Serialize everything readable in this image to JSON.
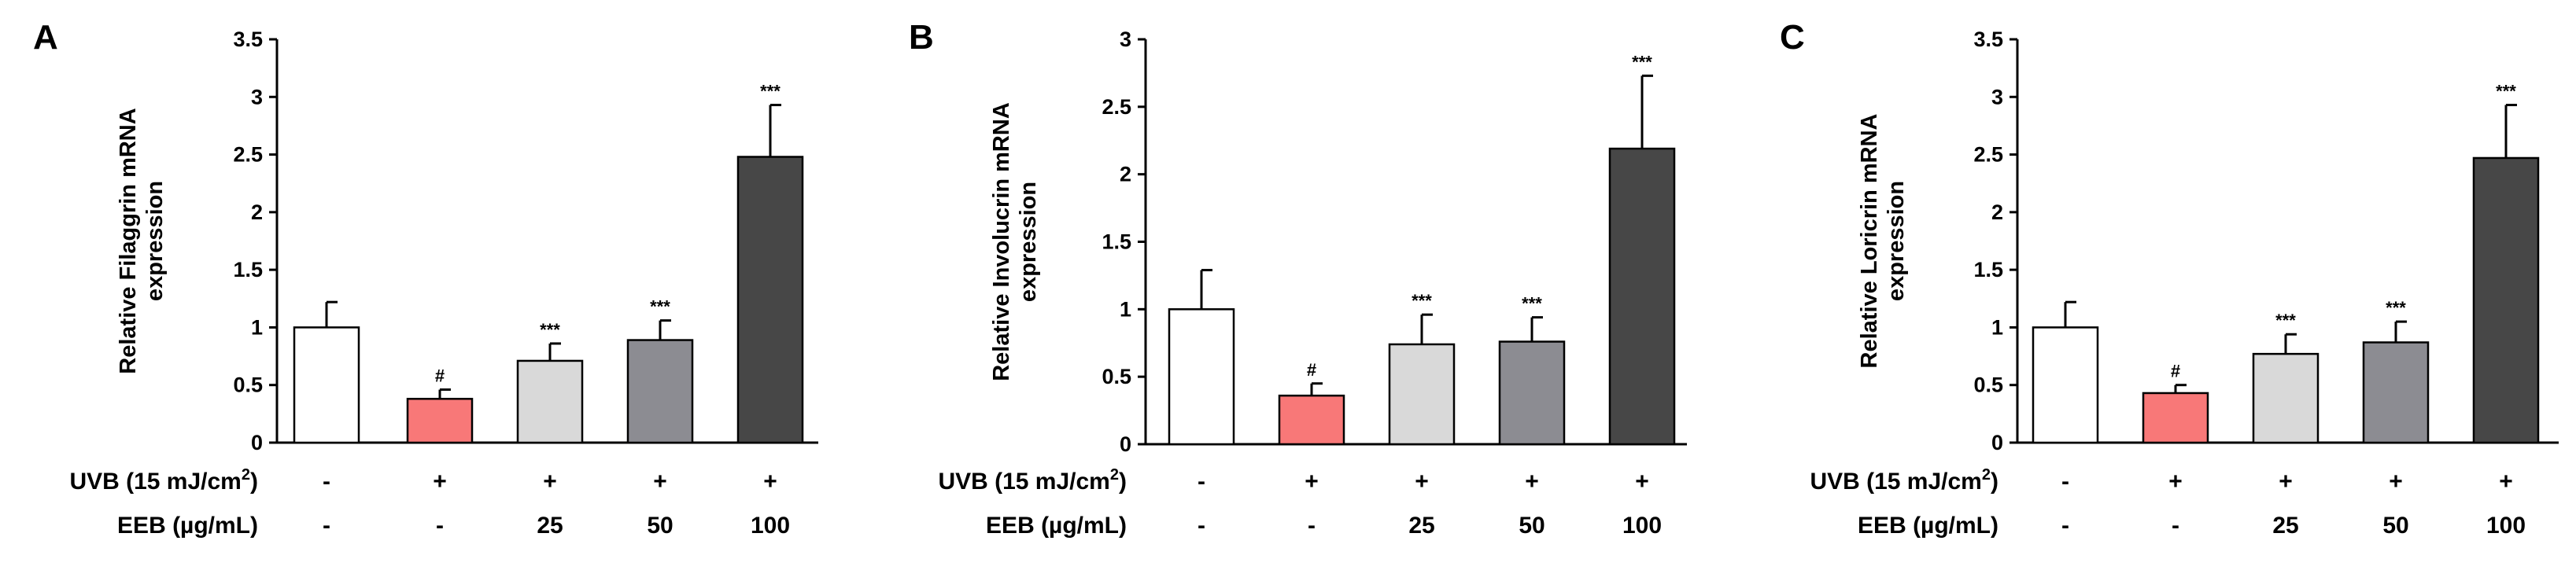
{
  "chart_data": [
    {
      "panel": "A",
      "type": "bar",
      "ylabel_line1": "Relative Filaggrin mRNA",
      "ylabel_line2": "expression",
      "ylim": [
        0,
        3.5
      ],
      "yticks": [
        "0",
        "0.5",
        "1",
        "1.5",
        "2",
        "2.5",
        "3",
        "3.5"
      ],
      "values": [
        1.0,
        0.38,
        0.71,
        0.89,
        2.48
      ],
      "errors": [
        0.22,
        0.08,
        0.15,
        0.17,
        0.45
      ],
      "significance": [
        "",
        "#",
        "***",
        "***",
        "***"
      ],
      "uvb_label_prefix": "UVB (15 mJ/cm",
      "uvb_label_sup": "2",
      "uvb_label_suffix": ")",
      "eeb_label": "EEB (µg/mL)",
      "uvb": [
        "-",
        "+",
        "+",
        "+",
        "+"
      ],
      "eeb": [
        "-",
        "-",
        "25",
        "50",
        "100"
      ]
    },
    {
      "panel": "B",
      "type": "bar",
      "ylabel_line1": "Relative Involucrin mRNA",
      "ylabel_line2": "expression",
      "ylim": [
        0,
        3
      ],
      "yticks": [
        "0",
        "0.5",
        "1",
        "1.5",
        "2",
        "2.5",
        "3"
      ],
      "values": [
        1.0,
        0.36,
        0.74,
        0.76,
        2.19
      ],
      "errors": [
        0.29,
        0.09,
        0.22,
        0.18,
        0.54
      ],
      "significance": [
        "",
        "#",
        "***",
        "***",
        "***"
      ],
      "uvb_label_prefix": "UVB (15 mJ/cm",
      "uvb_label_sup": "2",
      "uvb_label_suffix": ")",
      "eeb_label": "EEB (µg/mL)",
      "uvb": [
        "-",
        "+",
        "+",
        "+",
        "+"
      ],
      "eeb": [
        "-",
        "-",
        "25",
        "50",
        "100"
      ]
    },
    {
      "panel": "C",
      "type": "bar",
      "ylabel_line1": "Relative Loricrin mRNA",
      "ylabel_line2": "expression",
      "ylim": [
        0,
        3.5
      ],
      "yticks": [
        "0",
        "0.5",
        "1",
        "1.5",
        "2",
        "2.5",
        "3",
        "3.5"
      ],
      "values": [
        1.0,
        0.43,
        0.77,
        0.87,
        2.47
      ],
      "errors": [
        0.22,
        0.07,
        0.17,
        0.18,
        0.46
      ],
      "significance": [
        "",
        "#",
        "***",
        "***",
        "***"
      ],
      "uvb_label_prefix": "UVB (15 mJ/cm",
      "uvb_label_sup": "2",
      "uvb_label_suffix": ")",
      "eeb_label": "EEB (µg/mL)",
      "uvb": [
        "-",
        "+",
        "+",
        "+",
        "+"
      ],
      "eeb": [
        "-",
        "-",
        "25",
        "50",
        "100"
      ]
    }
  ],
  "colors": {
    "bars": [
      "#ffffff",
      "#f87878",
      "#d9d9d9",
      "#8c8c92",
      "#474747"
    ],
    "axis": "#000000"
  }
}
